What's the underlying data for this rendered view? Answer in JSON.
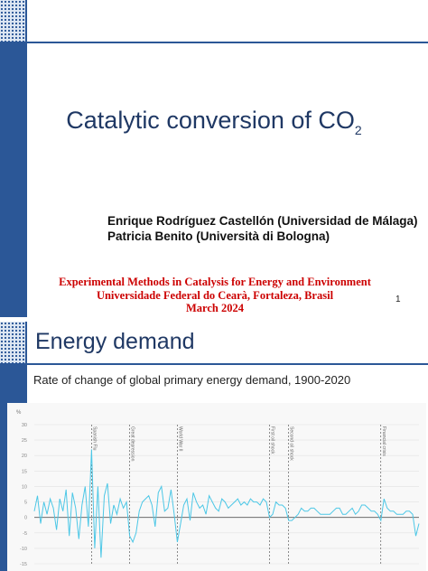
{
  "slide1": {
    "title_main": "Catalytic conversion of CO",
    "title_sub": "2",
    "authors": [
      "Enrique Rodríguez Castellón (Universidad de Málaga)",
      "Patricia Benito (Università di Bologna)"
    ],
    "course_lines": [
      "Experimental Methods in Catalysis for Energy and Environment",
      "Universidade Federal do Cearà, Fortaleza, Brasil",
      "March 2024"
    ],
    "page_number": "1"
  },
  "slide2": {
    "title": "Energy demand",
    "subtitle": "Rate of change of global primary energy demand, 1900-2020"
  },
  "chart_data": {
    "type": "line",
    "ylabel": "%",
    "yticks": [
      30,
      25,
      20,
      15,
      10,
      5,
      0,
      -5,
      -10,
      -15
    ],
    "ylim": [
      -15,
      30
    ],
    "xlim": [
      1900,
      2021
    ],
    "grid": true,
    "series_color": "#4cc7e6",
    "annotations": [
      {
        "year": 1918,
        "label": "Spanish Flu"
      },
      {
        "year": 1930,
        "label": "Great depression"
      },
      {
        "year": 1945,
        "label": "World War II"
      },
      {
        "year": 1974,
        "label": "First oil shock"
      },
      {
        "year": 1980,
        "label": "Second oil shock"
      },
      {
        "year": 2009,
        "label": "Financial crisis"
      }
    ],
    "x": [
      1900,
      1901,
      1902,
      1903,
      1904,
      1905,
      1906,
      1907,
      1908,
      1909,
      1910,
      1911,
      1912,
      1913,
      1914,
      1915,
      1916,
      1917,
      1918,
      1919,
      1920,
      1921,
      1922,
      1923,
      1924,
      1925,
      1926,
      1927,
      1928,
      1929,
      1930,
      1931,
      1932,
      1933,
      1934,
      1935,
      1936,
      1937,
      1938,
      1939,
      1940,
      1941,
      1942,
      1943,
      1944,
      1945,
      1946,
      1947,
      1948,
      1949,
      1950,
      1951,
      1952,
      1953,
      1954,
      1955,
      1956,
      1957,
      1958,
      1959,
      1960,
      1961,
      1962,
      1963,
      1964,
      1965,
      1966,
      1967,
      1968,
      1969,
      1970,
      1971,
      1972,
      1973,
      1974,
      1975,
      1976,
      1977,
      1978,
      1979,
      1980,
      1981,
      1982,
      1983,
      1984,
      1985,
      1986,
      1987,
      1988,
      1989,
      1990,
      1991,
      1992,
      1993,
      1994,
      1995,
      1996,
      1997,
      1998,
      1999,
      2000,
      2001,
      2002,
      2003,
      2004,
      2005,
      2006,
      2007,
      2008,
      2009,
      2010,
      2011,
      2012,
      2013,
      2014,
      2015,
      2016,
      2017,
      2018,
      2019,
      2020,
      2021
    ],
    "y": [
      2,
      7,
      -2,
      5,
      1,
      6,
      3,
      -4,
      6,
      2,
      9,
      -6,
      8,
      3,
      -7,
      4,
      10,
      -3,
      22,
      -10,
      10,
      -13,
      7,
      11,
      -2,
      4,
      1,
      6,
      3,
      5,
      -6,
      -8,
      -5,
      2,
      5,
      6,
      7,
      4,
      -3,
      8,
      10,
      2,
      3,
      9,
      1,
      -8,
      -2,
      4,
      6,
      -1,
      8,
      5,
      3,
      4,
      1,
      7,
      5,
      3,
      2,
      6,
      5,
      3,
      4,
      5,
      6,
      4,
      5,
      4,
      6,
      5,
      5,
      4,
      6,
      5,
      0,
      1,
      5,
      4,
      4,
      3,
      -1,
      -1,
      0,
      1,
      3,
      2,
      2,
      3,
      3,
      2,
      1,
      1,
      1,
      1,
      2,
      3,
      3,
      1,
      1,
      2,
      3,
      1,
      2,
      4,
      4,
      3,
      2,
      2,
      1,
      -1,
      6,
      3,
      2,
      2,
      1,
      1,
      1,
      2,
      2,
      1,
      -6,
      -2
    ]
  }
}
